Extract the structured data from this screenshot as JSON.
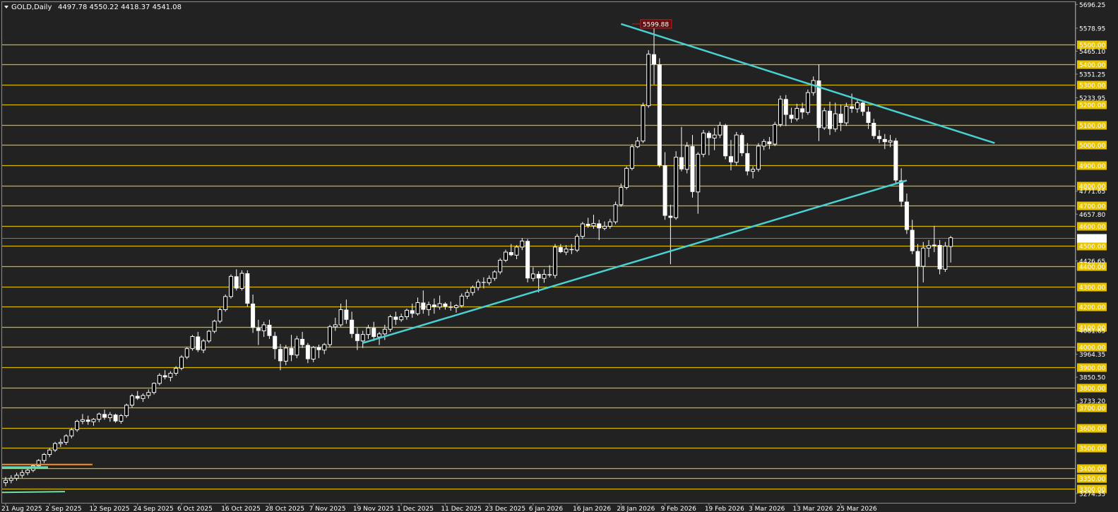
{
  "header": {
    "symbol": "GOLD,Daily",
    "ohlc": "4497.78 4550.22 4418.37 4541.08"
  },
  "colors": {
    "background": "#222222",
    "level_line": "#d4b400",
    "level_label_bg": "#e8c400",
    "trend_line": "#4ad0d0",
    "orange_line": "#ff8c1a",
    "candle": "#ffffff",
    "peak_label": "#d01818",
    "price_line": "#8c96b4"
  },
  "chart_data": {
    "type": "candlestick",
    "symbol": "GOLD",
    "timeframe": "Daily",
    "y_range": [
      3272,
      5710
    ],
    "current_price": 4541.08,
    "peak_label": "5599.88",
    "level_labels": [
      "5500.00",
      "5400.00",
      "5300.00",
      "5200.00",
      "5100.00",
      "5000.00",
      "4900.00",
      "4800.00",
      "4700.00",
      "4600.00",
      "4500.00",
      "4400.00",
      "4300.00",
      "4200.00",
      "4100.00",
      "4000.00",
      "3900.00",
      "3800.00",
      "3700.00",
      "3600.00",
      "3500.00",
      "3400.00",
      "3350.00",
      "3300.00"
    ],
    "levels": [
      5500,
      5400,
      5300,
      5200,
      5100,
      5000,
      4900,
      4800,
      4700,
      4600,
      4500,
      4400,
      4300,
      4200,
      4100,
      4000,
      3900,
      3800,
      3700,
      3600,
      3500,
      3400,
      3350,
      3300
    ],
    "price_tick_labels": [
      "5696.25",
      "5578.95",
      "5465.10",
      "5351.25",
      "5233.95",
      "4771.65",
      "4657.80",
      "4426.65",
      "4081.65",
      "3964.35",
      "3850.50",
      "3733.20",
      "3274.35"
    ],
    "price_ticks": [
      5696.25,
      5578.95,
      5465.1,
      5351.25,
      5233.95,
      4771.65,
      4657.8,
      4426.65,
      4081.65,
      3964.35,
      3850.5,
      3733.2,
      3274.35
    ],
    "x_tick_labels": [
      "21 Aug 2025",
      "2 Sep 2025",
      "12 Sep 2025",
      "24 Sep 2025",
      "6 Oct 2025",
      "16 Oct 2025",
      "28 Oct 2025",
      "7 Nov 2025",
      "19 Nov 2025",
      "1 Dec 2025",
      "11 Dec 2025",
      "23 Dec 2025",
      "6 Jan 2026",
      "16 Jan 2026",
      "28 Jan 2026",
      "9 Feb 2026",
      "19 Feb 2026",
      "3 Mar 2026",
      "13 Mar 2026",
      "25 Mar 2026"
    ],
    "x_tick_bar_index": [
      0,
      8,
      16,
      24,
      32,
      40,
      48,
      56,
      64,
      72,
      80,
      88,
      96,
      104,
      112,
      120,
      128,
      136,
      144,
      152
    ],
    "candles": [
      [
        3328,
        3356,
        3310,
        3340
      ],
      [
        3340,
        3365,
        3325,
        3350
      ],
      [
        3350,
        3378,
        3338,
        3365
      ],
      [
        3365,
        3392,
        3352,
        3378
      ],
      [
        3378,
        3405,
        3365,
        3390
      ],
      [
        3390,
        3420,
        3380,
        3412
      ],
      [
        3412,
        3445,
        3400,
        3438
      ],
      [
        3438,
        3475,
        3425,
        3468
      ],
      [
        3468,
        3500,
        3455,
        3490
      ],
      [
        3490,
        3530,
        3480,
        3522
      ],
      [
        3522,
        3545,
        3505,
        3528
      ],
      [
        3528,
        3568,
        3515,
        3560
      ],
      [
        3560,
        3600,
        3548,
        3590
      ],
      [
        3590,
        3640,
        3580,
        3632
      ],
      [
        3632,
        3668,
        3618,
        3640
      ],
      [
        3640,
        3660,
        3615,
        3630
      ],
      [
        3630,
        3648,
        3610,
        3642
      ],
      [
        3642,
        3675,
        3628,
        3668
      ],
      [
        3668,
        3690,
        3640,
        3650
      ],
      [
        3650,
        3678,
        3630,
        3665
      ],
      [
        3665,
        3670,
        3625,
        3632
      ],
      [
        3632,
        3668,
        3620,
        3660
      ],
      [
        3660,
        3720,
        3650,
        3712
      ],
      [
        3712,
        3768,
        3700,
        3758
      ],
      [
        3758,
        3782,
        3738,
        3745
      ],
      [
        3745,
        3770,
        3728,
        3760
      ],
      [
        3760,
        3790,
        3745,
        3775
      ],
      [
        3775,
        3825,
        3765,
        3820
      ],
      [
        3820,
        3870,
        3810,
        3860
      ],
      [
        3860,
        3885,
        3840,
        3850
      ],
      [
        3850,
        3880,
        3830,
        3870
      ],
      [
        3870,
        3905,
        3858,
        3895
      ],
      [
        3895,
        3960,
        3885,
        3950
      ],
      [
        3950,
        4000,
        3940,
        3992
      ],
      [
        3992,
        4060,
        3982,
        4052
      ],
      [
        4052,
        4075,
        3975,
        3985
      ],
      [
        3985,
        4040,
        3970,
        4030
      ],
      [
        4030,
        4085,
        4020,
        4078
      ],
      [
        4078,
        4135,
        4068,
        4128
      ],
      [
        4128,
        4195,
        4118,
        4185
      ],
      [
        4185,
        4260,
        4175,
        4250
      ],
      [
        4250,
        4360,
        4240,
        4350
      ],
      [
        4350,
        4385,
        4280,
        4290
      ],
      [
        4290,
        4380,
        4280,
        4365
      ],
      [
        4365,
        4380,
        4200,
        4215
      ],
      [
        4215,
        4260,
        4070,
        4095
      ],
      [
        4095,
        4135,
        4010,
        4080
      ],
      [
        4080,
        4125,
        4050,
        4110
      ],
      [
        4110,
        4135,
        4040,
        4055
      ],
      [
        4055,
        4075,
        3940,
        3990
      ],
      [
        3990,
        4015,
        3885,
        3930
      ],
      [
        3930,
        4010,
        3910,
        3995
      ],
      [
        3995,
        4060,
        3930,
        3960
      ],
      [
        3960,
        4055,
        3945,
        4040
      ],
      [
        4040,
        4075,
        3995,
        4010
      ],
      [
        4010,
        4020,
        3920,
        3940
      ],
      [
        3940,
        4005,
        3925,
        3998
      ],
      [
        3998,
        4012,
        3945,
        3985
      ],
      [
        3985,
        4020,
        3965,
        4012
      ],
      [
        4012,
        4110,
        4000,
        4100
      ],
      [
        4100,
        4145,
        4080,
        4110
      ],
      [
        4110,
        4215,
        4100,
        4185
      ],
      [
        4185,
        4235,
        4115,
        4135
      ],
      [
        4135,
        4175,
        4045,
        4065
      ],
      [
        4065,
        4095,
        3985,
        4030
      ],
      [
        4030,
        4080,
        3995,
        4062
      ],
      [
        4062,
        4110,
        4040,
        4095
      ],
      [
        4095,
        4125,
        4030,
        4050
      ],
      [
        4050,
        4075,
        4010,
        4065
      ],
      [
        4065,
        4110,
        4035,
        4088
      ],
      [
        4088,
        4160,
        4075,
        4150
      ],
      [
        4150,
        4175,
        4110,
        4135
      ],
      [
        4135,
        4165,
        4125,
        4150
      ],
      [
        4150,
        4190,
        4135,
        4182
      ],
      [
        4182,
        4215,
        4145,
        4165
      ],
      [
        4165,
        4245,
        4155,
        4220
      ],
      [
        4220,
        4280,
        4165,
        4185
      ],
      [
        4185,
        4225,
        4155,
        4210
      ],
      [
        4210,
        4240,
        4165,
        4198
      ],
      [
        4198,
        4255,
        4185,
        4215
      ],
      [
        4215,
        4222,
        4185,
        4200
      ],
      [
        4200,
        4225,
        4180,
        4195
      ],
      [
        4195,
        4212,
        4170,
        4205
      ],
      [
        4205,
        4265,
        4195,
        4252
      ],
      [
        4252,
        4285,
        4238,
        4270
      ],
      [
        4270,
        4305,
        4255,
        4295
      ],
      [
        4295,
        4335,
        4280,
        4322
      ],
      [
        4322,
        4345,
        4290,
        4318
      ],
      [
        4318,
        4355,
        4305,
        4340
      ],
      [
        4340,
        4380,
        4328,
        4372
      ],
      [
        4372,
        4440,
        4360,
        4430
      ],
      [
        4430,
        4482,
        4420,
        4470
      ],
      [
        4470,
        4510,
        4450,
        4455
      ],
      [
        4455,
        4505,
        4435,
        4495
      ],
      [
        4495,
        4540,
        4480,
        4525
      ],
      [
        4525,
        4535,
        4320,
        4340
      ],
      [
        4340,
        4395,
        4325,
        4362
      ],
      [
        4362,
        4375,
        4270,
        4340
      ],
      [
        4340,
        4385,
        4318,
        4360
      ],
      [
        4360,
        4405,
        4345,
        4355
      ],
      [
        4355,
        4510,
        4340,
        4495
      ],
      [
        4495,
        4510,
        4465,
        4470
      ],
      [
        4470,
        4505,
        4455,
        4485
      ],
      [
        4485,
        4510,
        4460,
        4480
      ],
      [
        4480,
        4560,
        4470,
        4548
      ],
      [
        4548,
        4620,
        4535,
        4610
      ],
      [
        4610,
        4640,
        4590,
        4600
      ],
      [
        4600,
        4655,
        4585,
        4612
      ],
      [
        4612,
        4630,
        4530,
        4588
      ],
      [
        4588,
        4622,
        4578,
        4598
      ],
      [
        4598,
        4635,
        4586,
        4620
      ],
      [
        4620,
        4720,
        4608,
        4705
      ],
      [
        4705,
        4810,
        4695,
        4790
      ],
      [
        4790,
        4895,
        4780,
        4885
      ],
      [
        4885,
        5005,
        4875,
        4992
      ],
      [
        4992,
        5040,
        4985,
        5020
      ],
      [
        5020,
        5210,
        5010,
        5195
      ],
      [
        5195,
        5470,
        5185,
        5450
      ],
      [
        5450,
        5600,
        5300,
        5400
      ],
      [
        5400,
        5430,
        4890,
        4900
      ],
      [
        4900,
        4965,
        4630,
        4650
      ],
      [
        4650,
        4705,
        4410,
        4640
      ],
      [
        4640,
        4970,
        4630,
        4940
      ],
      [
        4940,
        5090,
        4870,
        4880
      ],
      [
        4880,
        5015,
        4860,
        4995
      ],
      [
        4995,
        5050,
        4740,
        4768
      ],
      [
        4768,
        4965,
        4660,
        4955
      ],
      [
        4955,
        5075,
        4940,
        5060
      ],
      [
        5060,
        5070,
        4950,
        5035
      ],
      [
        5035,
        5085,
        4975,
        5050
      ],
      [
        5050,
        5115,
        5035,
        5098
      ],
      [
        5098,
        5105,
        4930,
        4945
      ],
      [
        4945,
        5025,
        4875,
        4915
      ],
      [
        4915,
        5065,
        4900,
        5050
      ],
      [
        5050,
        5060,
        4945,
        4960
      ],
      [
        4960,
        5010,
        4850,
        4870
      ],
      [
        4870,
        4895,
        4835,
        4880
      ],
      [
        4880,
        5010,
        4868,
        4995
      ],
      [
        4995,
        5030,
        4975,
        5018
      ],
      [
        5018,
        5040,
        4980,
        5005
      ],
      [
        5005,
        5115,
        4995,
        5102
      ],
      [
        5102,
        5245,
        5090,
        5228
      ],
      [
        5228,
        5248,
        5095,
        5150
      ],
      [
        5150,
        5185,
        5110,
        5130
      ],
      [
        5130,
        5205,
        5118,
        5182
      ],
      [
        5182,
        5210,
        5130,
        5162
      ],
      [
        5162,
        5275,
        5150,
        5260
      ],
      [
        5260,
        5340,
        5245,
        5320
      ],
      [
        5320,
        5400,
        5020,
        5085
      ],
      [
        5085,
        5185,
        5075,
        5170
      ],
      [
        5170,
        5215,
        5050,
        5080
      ],
      [
        5080,
        5210,
        5065,
        5155
      ],
      [
        5155,
        5200,
        5070,
        5110
      ],
      [
        5110,
        5210,
        5095,
        5192
      ],
      [
        5192,
        5255,
        5160,
        5180
      ],
      [
        5180,
        5222,
        5160,
        5210
      ],
      [
        5210,
        5220,
        5145,
        5165
      ],
      [
        5165,
        5190,
        5080,
        5110
      ],
      [
        5110,
        5130,
        5030,
        5045
      ],
      [
        5045,
        5075,
        5010,
        5030
      ],
      [
        5030,
        5055,
        4980,
        5015
      ],
      [
        5015,
        5050,
        4990,
        5022
      ],
      [
        5022,
        5035,
        4810,
        4825
      ],
      [
        4825,
        4885,
        4695,
        4720
      ],
      [
        4720,
        4760,
        4560,
        4580
      ],
      [
        4580,
        4630,
        4460,
        4475
      ],
      [
        4475,
        4510,
        4100,
        4400
      ],
      [
        4400,
        4520,
        4320,
        4490
      ],
      [
        4490,
        4530,
        4445,
        4502
      ],
      [
        4502,
        4600,
        4470,
        4505
      ],
      [
        4505,
        4530,
        4360,
        4385
      ],
      [
        4385,
        4520,
        4372,
        4500
      ],
      [
        4497.78,
        4550.22,
        4418.37,
        4541.08
      ]
    ],
    "trend_lines": [
      {
        "from": [
          112,
          5600
        ],
        "to": [
          180,
          5010
        ]
      },
      {
        "from": [
          65,
          4020
        ],
        "to": [
          164,
          4825
        ]
      }
    ]
  }
}
